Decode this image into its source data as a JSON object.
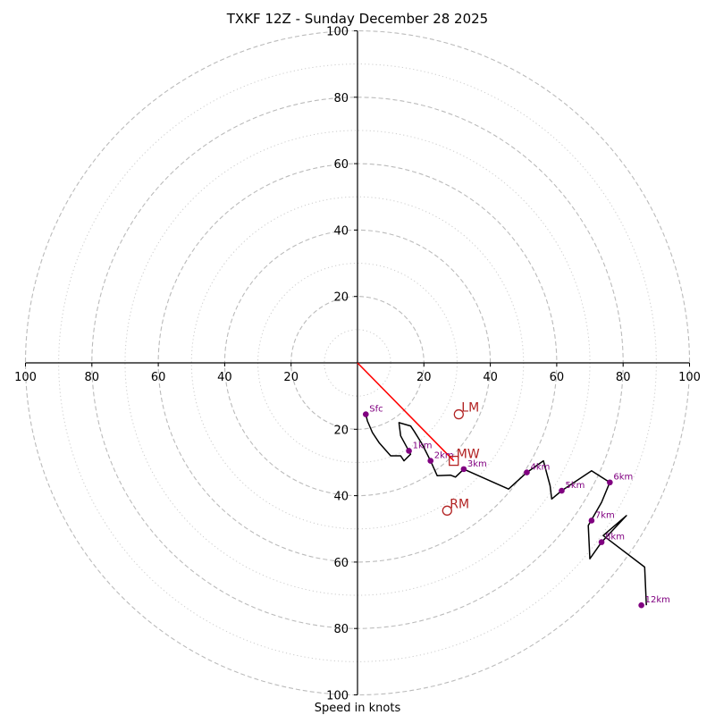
{
  "chart_data": {
    "type": "hodograph",
    "title": "TXKF 12Z - Sunday December 28 2025",
    "xlabel": "Speed in knots",
    "max_ring": 100,
    "major_rings": [
      20,
      40,
      60,
      80,
      100
    ],
    "minor_rings": [
      10,
      30,
      50,
      70,
      90
    ],
    "axis_ticks": {
      "x": [
        {
          "pos": -100,
          "label": "100"
        },
        {
          "pos": -80,
          "label": "80"
        },
        {
          "pos": -60,
          "label": "60"
        },
        {
          "pos": -40,
          "label": "40"
        },
        {
          "pos": -20,
          "label": "20"
        },
        {
          "pos": 20,
          "label": "20"
        },
        {
          "pos": 40,
          "label": "40"
        },
        {
          "pos": 60,
          "label": "60"
        },
        {
          "pos": 80,
          "label": "80"
        },
        {
          "pos": 100,
          "label": "100"
        }
      ],
      "y": [
        {
          "pos": 100,
          "label": "100"
        },
        {
          "pos": 80,
          "label": "80"
        },
        {
          "pos": 60,
          "label": "60"
        },
        {
          "pos": 40,
          "label": "40"
        },
        {
          "pos": 20,
          "label": "20"
        },
        {
          "pos": -20,
          "label": "20"
        },
        {
          "pos": -40,
          "label": "40"
        },
        {
          "pos": -60,
          "label": "60"
        },
        {
          "pos": -80,
          "label": "80"
        },
        {
          "pos": -100,
          "label": "100"
        }
      ]
    },
    "trace": [
      [
        2.5,
        -15.5
      ],
      [
        3.0,
        -17.5
      ],
      [
        4.5,
        -21.0
      ],
      [
        6.5,
        -24.0
      ],
      [
        10.0,
        -28.0
      ],
      [
        13.0,
        -28.0
      ],
      [
        14.0,
        -29.5
      ],
      [
        16.0,
        -27.5
      ],
      [
        13.0,
        -22.0
      ],
      [
        12.5,
        -18.0
      ],
      [
        16.0,
        -19.0
      ],
      [
        17.0,
        -20.5
      ],
      [
        19.5,
        -24.5
      ],
      [
        22.0,
        -29.5
      ],
      [
        24.0,
        -34.0
      ],
      [
        28.0,
        -33.8
      ],
      [
        29.5,
        -34.4
      ],
      [
        32.0,
        -32.0
      ],
      [
        45.5,
        -38.0
      ],
      [
        51.0,
        -33.0
      ],
      [
        56.0,
        -29.5
      ],
      [
        58.0,
        -37.0
      ],
      [
        58.5,
        -41.0
      ],
      [
        61.5,
        -38.5
      ],
      [
        70.5,
        -32.5
      ],
      [
        76.0,
        -36.0
      ],
      [
        73.5,
        -42.0
      ],
      [
        69.5,
        -49.0
      ],
      [
        70.0,
        -59.0
      ],
      [
        73.5,
        -54.0
      ],
      [
        81.0,
        -46.0
      ],
      [
        74.0,
        -52.0
      ],
      [
        86.5,
        -61.5
      ],
      [
        87.0,
        -73.0
      ]
    ],
    "height_markers": [
      {
        "label": "Sfc",
        "u": 2.5,
        "v": -15.5
      },
      {
        "label": "1km",
        "u": 15.5,
        "v": -26.5
      },
      {
        "label": "2km",
        "u": 22.0,
        "v": -29.5
      },
      {
        "label": "3km",
        "u": 32.0,
        "v": -32.0
      },
      {
        "label": "4km",
        "u": 51.0,
        "v": -33.0
      },
      {
        "label": "5km",
        "u": 61.5,
        "v": -38.5
      },
      {
        "label": "6km",
        "u": 76.0,
        "v": -36.0
      },
      {
        "label": "7km",
        "u": 70.5,
        "v": -47.5
      },
      {
        "label": "8km",
        "u": 73.5,
        "v": -54.0
      },
      {
        "label": "12km",
        "u": 85.5,
        "v": -73.0
      }
    ],
    "motions": [
      {
        "label": "LM",
        "u": 30.5,
        "v": -15.5,
        "marker": "circle"
      },
      {
        "label": "MW",
        "u": 29.0,
        "v": -29.5,
        "marker": "square"
      },
      {
        "label": "RM",
        "u": 27.0,
        "v": -44.5,
        "marker": "circle"
      }
    ],
    "shear_vector": {
      "from": [
        0,
        0
      ],
      "to": [
        29.0,
        -29.5
      ],
      "color": "#ff0000"
    },
    "colors": {
      "trace": "#000000",
      "marker": "#800080",
      "motion": "#b22222",
      "grid": "#bbbbbb"
    }
  }
}
